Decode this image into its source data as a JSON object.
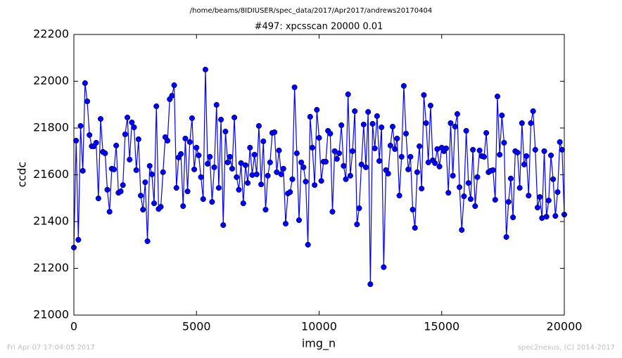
{
  "chart_data": {
    "type": "line",
    "title": "/home/beams/8IDIUSER/spec_data/2017/Apr2017/andrews20170404",
    "subtitle": "#497: xpcsscan 20000 0.01",
    "x_label": "img_n",
    "y_label": "ccdc",
    "footer_left": "Fri Apr 07 17:04:05 2017",
    "footer_right": "spec2nexus, (C) 2014-2017",
    "xlim": [
      0,
      20000
    ],
    "ylim": [
      21000,
      22200
    ],
    "xticks": [
      0,
      5000,
      10000,
      15000,
      20000
    ],
    "yticks": [
      21000,
      21200,
      21400,
      21600,
      21800,
      22000,
      22200
    ],
    "x": [
      0,
      91,
      182,
      273,
      364,
      455,
      545,
      636,
      727,
      818,
      909,
      1000,
      1091,
      1182,
      1273,
      1364,
      1455,
      1545,
      1636,
      1727,
      1818,
      1909,
      2000,
      2091,
      2182,
      2273,
      2364,
      2455,
      2545,
      2636,
      2727,
      2818,
      2909,
      3000,
      3091,
      3182,
      3273,
      3364,
      3455,
      3545,
      3636,
      3727,
      3818,
      3909,
      4000,
      4091,
      4182,
      4273,
      4364,
      4455,
      4545,
      4636,
      4727,
      4818,
      4909,
      5000,
      5091,
      5182,
      5273,
      5364,
      5455,
      5545,
      5636,
      5727,
      5818,
      5909,
      6000,
      6091,
      6182,
      6273,
      6364,
      6455,
      6545,
      6636,
      6727,
      6818,
      6909,
      7000,
      7091,
      7182,
      7273,
      7364,
      7455,
      7545,
      7636,
      7727,
      7818,
      7909,
      8000,
      8091,
      8182,
      8273,
      8364,
      8455,
      8545,
      8636,
      8727,
      8818,
      8909,
      9000,
      9091,
      9182,
      9273,
      9364,
      9455,
      9545,
      9636,
      9727,
      9818,
      9909,
      10000,
      10091,
      10182,
      10273,
      10364,
      10455,
      10545,
      10636,
      10727,
      10818,
      10909,
      11000,
      11091,
      11182,
      11273,
      11364,
      11455,
      11545,
      11636,
      11727,
      11818,
      11909,
      12000,
      12091,
      12182,
      12273,
      12364,
      12455,
      12545,
      12636,
      12727,
      12818,
      12909,
      13000,
      13091,
      13182,
      13273,
      13364,
      13455,
      13545,
      13636,
      13727,
      13818,
      13909,
      14000,
      14091,
      14182,
      14273,
      14364,
      14455,
      14545,
      14636,
      14727,
      14818,
      14909,
      15000,
      15091,
      15182,
      15273,
      15364,
      15455,
      15545,
      15636,
      15727,
      15818,
      15909,
      16000,
      16091,
      16182,
      16273,
      16364,
      16455,
      16545,
      16636,
      16727,
      16818,
      16909,
      17000,
      17091,
      17182,
      17273,
      17364,
      17455,
      17545,
      17636,
      17727,
      17818,
      17909,
      18000,
      18091,
      18182,
      18273,
      18364,
      18455,
      18545,
      18636,
      18727,
      18818,
      18909,
      19000,
      19091,
      19182,
      19273,
      19364,
      19455,
      19545,
      19636,
      19727,
      19818,
      19909,
      20000
    ],
    "series": [
      {
        "color": "#0000ff",
        "values": [
          21289,
          21746,
          21322,
          21809,
          21617,
          21992,
          21914,
          21770,
          21722,
          21722,
          21737,
          21499,
          21839,
          21698,
          21692,
          21536,
          21442,
          21626,
          21623,
          21725,
          21523,
          21529,
          21556,
          21773,
          21845,
          21665,
          21824,
          21803,
          21620,
          21752,
          21511,
          21451,
          21568,
          21316,
          21638,
          21602,
          21478,
          21893,
          21454,
          21463,
          21611,
          21761,
          21746,
          21923,
          21938,
          21983,
          21544,
          21674,
          21689,
          21466,
          21755,
          21529,
          21740,
          21842,
          21623,
          21716,
          21683,
          21590,
          21496,
          22050,
          21647,
          21677,
          21484,
          21632,
          21899,
          21544,
          21836,
          21385,
          21785,
          21653,
          21677,
          21626,
          21845,
          21590,
          21536,
          21650,
          21478,
          21641,
          21565,
          21716,
          21599,
          21686,
          21602,
          21809,
          21559,
          21743,
          21451,
          21596,
          21653,
          21779,
          21782,
          21611,
          21704,
          21602,
          21626,
          21391,
          21520,
          21526,
          21581,
          21974,
          21692,
          21406,
          21653,
          21632,
          21571,
          21301,
          21848,
          21716,
          21556,
          21878,
          21758,
          21574,
          21656,
          21656,
          21788,
          21776,
          21442,
          21701,
          21668,
          21692,
          21812,
          21638,
          21581,
          21944,
          21596,
          21701,
          21872,
          21388,
          21457,
          21644,
          21815,
          21632,
          21869,
          21132,
          21818,
          21713,
          21851,
          21659,
          21803,
          21205,
          21620,
          21605,
          21725,
          21806,
          21710,
          21755,
          21511,
          21677,
          21980,
          21776,
          21623,
          21677,
          21451,
          21373,
          21611,
          21722,
          21541,
          21941,
          21821,
          21653,
          21896,
          21662,
          21650,
          21710,
          21635,
          21716,
          21701,
          21713,
          21523,
          21821,
          21596,
          21806,
          21860,
          21547,
          21364,
          21508,
          21788,
          21565,
          21496,
          21707,
          21466,
          21590,
          21704,
          21680,
          21677,
          21779,
          21611,
          21617,
          21620,
          21493,
          21935,
          21686,
          21854,
          21737,
          21334,
          21484,
          21584,
          21418,
          21701,
          21695,
          21544,
          21821,
          21644,
          21680,
          21511,
          21821,
          21872,
          21707,
          21460,
          21505,
          21415,
          21701,
          21421,
          21490,
          21683,
          21581,
          21424,
          21526,
          21740,
          21707,
          21430
        ]
      }
    ]
  }
}
